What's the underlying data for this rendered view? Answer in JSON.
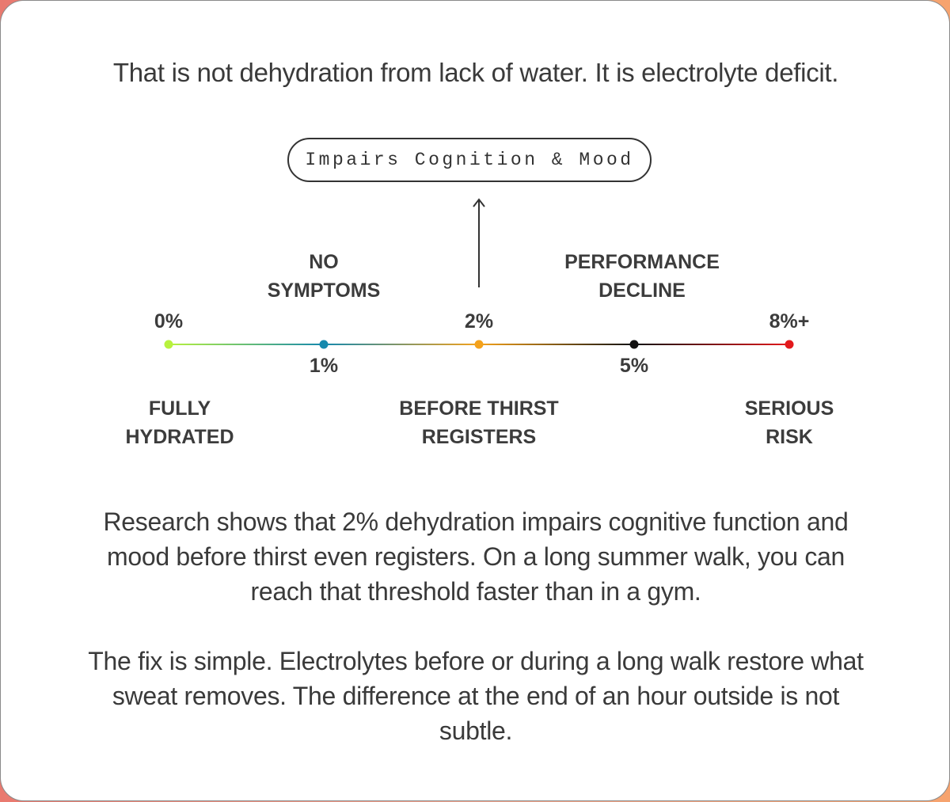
{
  "intro": "That is not dehydration from lack of water. It is electrolyte deficit.",
  "callout": "Impairs Cognition & Mood",
  "scale": {
    "points": [
      {
        "level": "0%",
        "label": "FULLY HYDRATED",
        "color": "#b8f23e"
      },
      {
        "level": "1%",
        "label": "NO SYMPTOMS",
        "color": "#1689ad"
      },
      {
        "level": "2%",
        "label": "BEFORE THIRST REGISTERS",
        "color": "#f4a21c"
      },
      {
        "level": "5%",
        "label": "PERFORMANCE DECLINE",
        "color": "#111111"
      },
      {
        "level": "8%+",
        "label": "SERIOUS RISK",
        "color": "#e3191c"
      }
    ]
  },
  "paragraphs": [
    "Research shows that 2% dehydration impairs cognitive function and mood before thirst even registers. On a long summer walk, you can reach that threshold faster than in a gym.",
    "The fix is simple. Electrolytes before or during a long walk restore what sweat removes. The difference at the end of an hour outside is not subtle."
  ]
}
